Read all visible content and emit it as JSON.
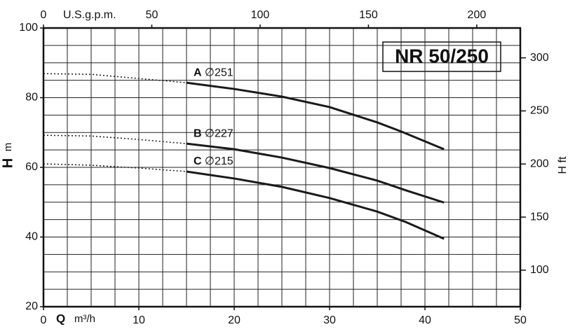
{
  "chart_data": {
    "type": "line",
    "title": "NR 50/250",
    "x_label": "Q",
    "x_unit": "m³/h",
    "y_label": "H",
    "y_unit": "m",
    "x2_label": "U.S.g.p.m.",
    "y2_label": "H ft",
    "xlim": [
      0,
      50
    ],
    "xticks": [
      0,
      10,
      20,
      30,
      40,
      50
    ],
    "ylim": [
      20,
      100
    ],
    "yticks": [
      20,
      40,
      60,
      80,
      100
    ],
    "x2lim": [
      0,
      220.1
    ],
    "x2ticks": [
      0,
      50,
      100,
      150,
      200
    ],
    "y2lim": [
      65.6,
      328.1
    ],
    "y2ticks": [
      100,
      150,
      200,
      250,
      300
    ],
    "grid": true,
    "grid_x_step": 2.5,
    "grid_y_step": 5,
    "series": [
      {
        "name": "A",
        "diameter": "∅251",
        "color": "#1a1a1a",
        "x": [
          15,
          20,
          25,
          30,
          35,
          37.5,
          42
        ],
        "values": [
          84.3,
          82.5,
          80.3,
          77.3,
          72.9,
          70.3,
          65.2
        ],
        "extrapolated": {
          "x": [
            0,
            5,
            10,
            15
          ],
          "values": [
            86.9,
            86.7,
            85.5,
            84.3
          ]
        }
      },
      {
        "name": "B",
        "diameter": "∅227",
        "color": "#1a1a1a",
        "x": [
          15,
          20,
          25,
          30,
          35,
          38,
          42
        ],
        "values": [
          66.8,
          65.2,
          62.8,
          59.8,
          56.2,
          53.4,
          49.9
        ],
        "extrapolated": {
          "x": [
            0,
            5,
            10,
            15
          ],
          "values": [
            69.2,
            69,
            68,
            66.8
          ]
        }
      },
      {
        "name": "C",
        "diameter": "∅215",
        "color": "#1a1a1a",
        "x": [
          15,
          20,
          25,
          30,
          35,
          38,
          42
        ],
        "values": [
          58.8,
          56.8,
          54.4,
          51.2,
          47.3,
          44.3,
          39.5
        ],
        "extrapolated": {
          "x": [
            0,
            5,
            10,
            15
          ],
          "values": [
            61,
            60.6,
            59.8,
            58.8
          ]
        }
      }
    ]
  }
}
